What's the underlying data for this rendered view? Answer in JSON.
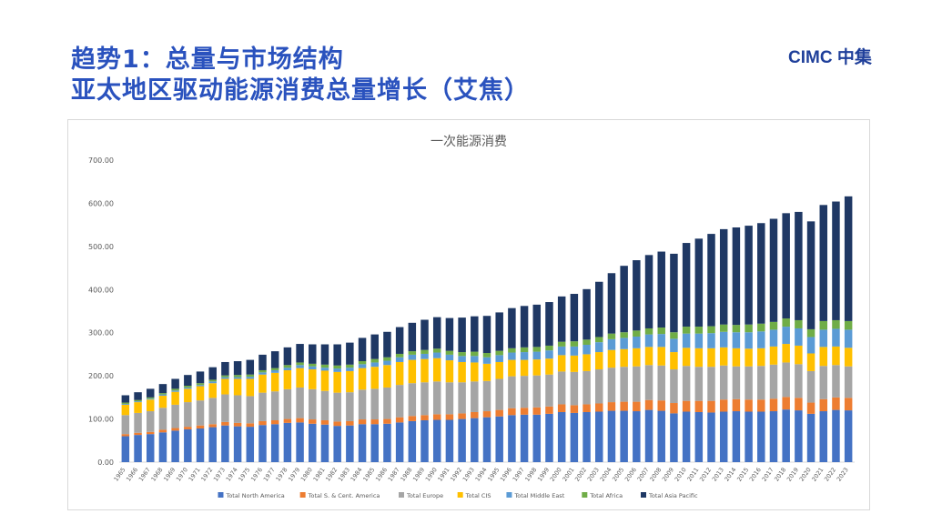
{
  "slide": {
    "title_line1": "趋势1：总量与市场结构",
    "title_line2": "亚太地区驱动能源消费总量增长（艾焦）",
    "logo_text": "CIMC 中集"
  },
  "chart_data": {
    "type": "bar",
    "stacked": true,
    "title": "一次能源消费",
    "xlabel": "",
    "ylabel": "",
    "ylim": [
      0,
      700
    ],
    "yticks": [
      "0.00",
      "100.00",
      "200.00",
      "300.00",
      "400.00",
      "500.00",
      "600.00",
      "700.00"
    ],
    "grid": false,
    "legend_position": "bottom",
    "categories": [
      "1965",
      "1966",
      "1967",
      "1968",
      "1969",
      "1970",
      "1971",
      "1972",
      "1973",
      "1974",
      "1975",
      "1976",
      "1977",
      "1978",
      "1979",
      "1980",
      "1981",
      "1982",
      "1983",
      "1984",
      "1985",
      "1986",
      "1987",
      "1988",
      "1989",
      "1990",
      "1991",
      "1992",
      "1993",
      "1994",
      "1995",
      "1996",
      "1997",
      "1998",
      "1999",
      "2000",
      "2001",
      "2002",
      "2003",
      "2004",
      "2005",
      "2006",
      "2007",
      "2008",
      "2009",
      "2010",
      "2011",
      "2012",
      "2013",
      "2014",
      "2015",
      "2016",
      "2017",
      "2018",
      "2019",
      "2020",
      "2021",
      "2022",
      "2023"
    ],
    "series": [
      {
        "name": "Total North America",
        "color": "#4472c4",
        "values": [
          60,
          63,
          65,
          69,
          73,
          76,
          78,
          81,
          85,
          83,
          82,
          86,
          88,
          91,
          92,
          89,
          87,
          84,
          85,
          88,
          88,
          89,
          92,
          95,
          97,
          98,
          98,
          100,
          102,
          104,
          106,
          109,
          110,
          110,
          112,
          116,
          114,
          116,
          117,
          119,
          119,
          118,
          121,
          119,
          113,
          117,
          116,
          115,
          117,
          118,
          117,
          117,
          118,
          122,
          120,
          112,
          118,
          121,
          120
        ]
      },
      {
        "name": "Total S. & Cent. America",
        "color": "#ed7d31",
        "values": [
          5,
          5,
          5,
          6,
          6,
          6,
          7,
          7,
          8,
          8,
          8,
          9,
          9,
          9,
          10,
          10,
          10,
          10,
          10,
          11,
          11,
          11,
          12,
          12,
          12,
          13,
          13,
          13,
          14,
          14,
          15,
          16,
          16,
          17,
          17,
          18,
          18,
          18,
          19,
          20,
          21,
          22,
          23,
          24,
          24,
          25,
          26,
          27,
          28,
          28,
          28,
          28,
          29,
          29,
          29,
          26,
          28,
          29,
          29
        ]
      },
      {
        "name": "Total Europe",
        "color": "#a5a5a5",
        "values": [
          44,
          46,
          48,
          51,
          54,
          57,
          58,
          61,
          64,
          64,
          63,
          66,
          67,
          69,
          71,
          70,
          68,
          67,
          67,
          69,
          71,
          73,
          75,
          76,
          76,
          76,
          74,
          72,
          71,
          70,
          72,
          74,
          74,
          74,
          74,
          76,
          77,
          77,
          79,
          80,
          81,
          82,
          81,
          81,
          78,
          81,
          79,
          79,
          79,
          76,
          77,
          78,
          79,
          80,
          78,
          73,
          77,
          75,
          73
        ]
      },
      {
        "name": "Total CIS",
        "color": "#ffc000",
        "values": [
          24,
          25,
          27,
          28,
          30,
          31,
          33,
          34,
          36,
          38,
          40,
          42,
          43,
          44,
          45,
          46,
          47,
          48,
          49,
          50,
          51,
          52,
          53,
          54,
          54,
          54,
          51,
          47,
          44,
          40,
          39,
          38,
          37,
          37,
          37,
          38,
          38,
          39,
          40,
          41,
          41,
          42,
          42,
          43,
          40,
          42,
          43,
          43,
          42,
          42,
          41,
          41,
          42,
          43,
          43,
          41,
          44,
          43,
          43
        ]
      },
      {
        "name": "Total Middle East",
        "color": "#5b9bd5",
        "values": [
          2,
          2,
          2,
          3,
          3,
          3,
          3,
          4,
          4,
          4,
          5,
          5,
          6,
          6,
          7,
          7,
          7,
          8,
          8,
          9,
          10,
          10,
          11,
          12,
          12,
          13,
          13,
          14,
          15,
          15,
          16,
          17,
          18,
          18,
          19,
          20,
          21,
          22,
          23,
          25,
          26,
          27,
          29,
          30,
          31,
          33,
          34,
          35,
          36,
          37,
          38,
          39,
          39,
          40,
          40,
          38,
          40,
          41,
          42
        ]
      },
      {
        "name": "Total Africa",
        "color": "#70ad47",
        "values": [
          3,
          3,
          3,
          3,
          4,
          4,
          4,
          4,
          4,
          5,
          5,
          5,
          5,
          6,
          6,
          6,
          7,
          7,
          7,
          7,
          8,
          8,
          8,
          8,
          9,
          9,
          9,
          9,
          10,
          10,
          10,
          10,
          11,
          11,
          11,
          11,
          12,
          12,
          12,
          13,
          13,
          14,
          14,
          15,
          15,
          16,
          16,
          16,
          17,
          17,
          18,
          18,
          18,
          19,
          19,
          18,
          20,
          20,
          20
        ]
      },
      {
        "name": "Total Asia Pacific",
        "color": "#1f3864",
        "values": [
          17,
          18,
          20,
          21,
          23,
          25,
          27,
          29,
          31,
          32,
          34,
          36,
          39,
          41,
          43,
          45,
          47,
          49,
          51,
          54,
          57,
          59,
          62,
          66,
          70,
          73,
          76,
          80,
          82,
          86,
          89,
          93,
          96,
          98,
          101,
          105,
          110,
          117,
          128,
          140,
          154,
          163,
          170,
          176,
          182,
          194,
          204,
          214,
          221,
          226,
          229,
          233,
          239,
          244,
          251,
          250,
          269,
          275,
          289
        ]
      }
    ]
  }
}
